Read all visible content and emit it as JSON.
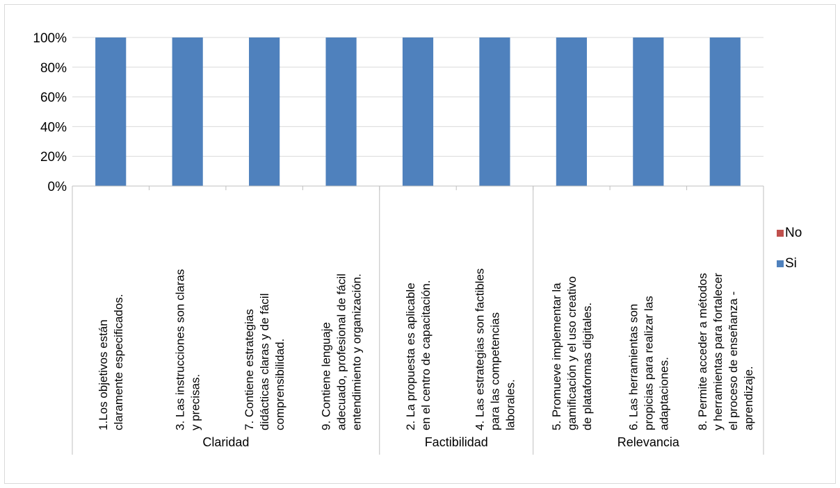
{
  "chart_data": {
    "type": "bar",
    "stacked": true,
    "percent": true,
    "ylim": [
      0,
      100
    ],
    "yticks": [
      "0%",
      "20%",
      "40%",
      "60%",
      "80%",
      "100%"
    ],
    "grid": true,
    "legend_position": "right",
    "groups": [
      {
        "name": "Claridad",
        "categories": [
          [
            "1.Los objetivos están",
            "claramente especificados."
          ],
          [
            "3. Las instrucciones son claras",
            "y precisas."
          ],
          [
            "7. Contiene estrategias",
            "didácticas claras y de fácil",
            "comprensibilidad."
          ],
          [
            "9. Contiene lenguaje",
            "adecuado, profesional de fácil",
            "entendimiento y  organización."
          ]
        ]
      },
      {
        "name": "Factibilidad",
        "categories": [
          [
            "2. La propuesta es aplicable",
            "en el centro de capacitación."
          ],
          [
            "4. Las estrategias son factibles",
            "para las competencias",
            "laborales."
          ]
        ]
      },
      {
        "name": "Relevancia",
        "categories": [
          [
            "5. Promueve  implementar la",
            "gamificación y el uso creativo",
            "de plataformas digitales."
          ],
          [
            "6. Las herramientas son",
            "propicias para realizar las",
            "adaptaciones."
          ],
          [
            "8. Permite acceder a métodos",
            "y herramientas para fortalecer",
            "el proceso de enseñanza -",
            "aprendizaje."
          ]
        ]
      }
    ],
    "series": [
      {
        "name": "Si",
        "color": "#4f81bd",
        "values": [
          100,
          100,
          100,
          100,
          100,
          100,
          100,
          100,
          100
        ]
      },
      {
        "name": "No",
        "color": "#c0504d",
        "values": [
          0,
          0,
          0,
          0,
          0,
          0,
          0,
          0,
          0
        ]
      }
    ],
    "legend": [
      {
        "name": "No",
        "color": "#c0504d"
      },
      {
        "name": "Si",
        "color": "#4f81bd"
      }
    ]
  }
}
